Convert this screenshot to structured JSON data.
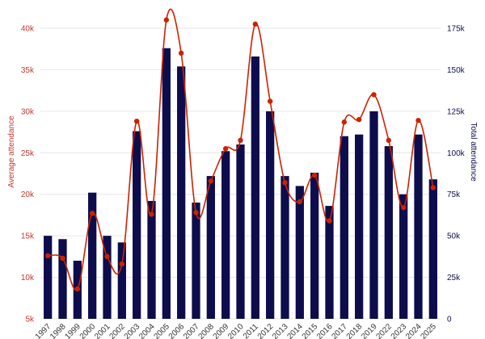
{
  "colors": {
    "bar": "#0d0d4d",
    "line": "#cc2200",
    "left_axis": "#c0392b",
    "right_axis": "#0d0d4d",
    "grid": "#e6e6e6"
  },
  "chart_data": {
    "type": "bar",
    "title": "",
    "categories": [
      "1997",
      "1998",
      "1999",
      "2000",
      "2001",
      "2002",
      "2003",
      "2004",
      "2005",
      "2006",
      "2007",
      "2008",
      "2009",
      "2010",
      "2011",
      "2012",
      "2013",
      "2014",
      "2015",
      "2016",
      "2017",
      "2018",
      "2019",
      "2022",
      "2023",
      "2024",
      "2025"
    ],
    "series": [
      {
        "name": "Total attendance",
        "type": "bar",
        "axis": "right",
        "values": [
          50000,
          48000,
          35000,
          76000,
          50000,
          46000,
          113000,
          71000,
          163000,
          152000,
          70000,
          86000,
          101000,
          105000,
          158000,
          125000,
          86000,
          80000,
          88000,
          68000,
          110000,
          111000,
          125000,
          104000,
          75000,
          111000,
          84000
        ]
      },
      {
        "name": "Average attendance",
        "type": "line",
        "axis": "left",
        "values": [
          12600,
          12300,
          8600,
          17700,
          12500,
          11600,
          28800,
          17600,
          41000,
          37000,
          17800,
          21600,
          25500,
          26500,
          40500,
          31200,
          21400,
          19100,
          22300,
          16800,
          28700,
          29000,
          32000,
          26500,
          18400,
          28900,
          20800
        ]
      }
    ],
    "left_axis": {
      "label": "Average attendance",
      "ylim": [
        5000,
        40000
      ],
      "ticks": [
        5000,
        10000,
        15000,
        20000,
        25000,
        30000,
        35000,
        40000
      ],
      "tick_labels": [
        "5k",
        "10k",
        "15k",
        "20k",
        "25k",
        "30k",
        "35k",
        "40k"
      ]
    },
    "right_axis": {
      "label": "Total attendance",
      "ylim": [
        0,
        175000
      ],
      "ticks": [
        0,
        25000,
        50000,
        75000,
        100000,
        125000,
        150000,
        175000
      ],
      "tick_labels": [
        "0",
        "25k",
        "50k",
        "75k",
        "100k",
        "125k",
        "150k",
        "175k"
      ]
    },
    "grid": true,
    "legend": "none"
  }
}
